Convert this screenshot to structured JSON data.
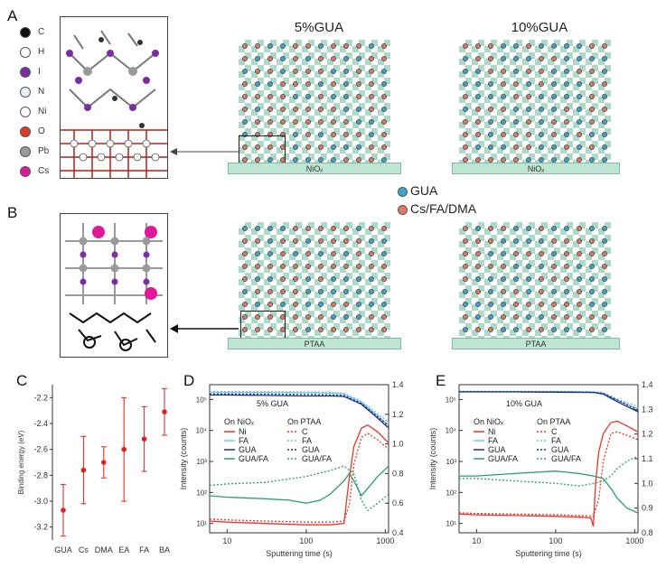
{
  "panels": {
    "A": "A",
    "B": "B",
    "C": "C",
    "D": "D",
    "E": "E"
  },
  "lattice_titles": {
    "left": "5%GUA",
    "right": "10%GUA"
  },
  "substrates": {
    "top": "NiOₓ",
    "bottom": "PTAA"
  },
  "legend_dots": [
    {
      "label": "GUA",
      "color": "#3aa6d0"
    },
    {
      "label": "Cs/FA/DMA",
      "color": "#e07a62"
    }
  ],
  "atom_legend": [
    {
      "label": "C",
      "color": "#111111"
    },
    {
      "label": "H",
      "color": "#ffffff"
    },
    {
      "label": "I",
      "color": "#7a2ea0"
    },
    {
      "label": "N",
      "color": "#e6eef6"
    },
    {
      "label": "Ni",
      "color": "#ffffff"
    },
    {
      "label": "O",
      "color": "#e03a2a"
    },
    {
      "label": "Pb",
      "color": "#9a9a9a"
    },
    {
      "label": "Cs",
      "color": "#e0189a"
    }
  ],
  "chart_data": [
    {
      "type": "scatter",
      "panel": "C",
      "ylabel": "Binding energy (eV)",
      "categories": [
        "GUA",
        "Cs",
        "DMA",
        "EA",
        "FA",
        "BA"
      ],
      "values": [
        -3.07,
        -2.76,
        -2.7,
        -2.6,
        -2.52,
        -2.31
      ],
      "errors": [
        0.2,
        0.26,
        0.12,
        0.4,
        0.25,
        0.18
      ],
      "ylim": [
        -3.3,
        -2.1
      ],
      "yticks": [
        -3.2,
        -3.0,
        -2.8,
        -2.6,
        -2.4,
        -2.2
      ],
      "ytick_labels": [
        "-3.2",
        "-3.0",
        "-2.8",
        "-2.6",
        "-2.4",
        "-2.2"
      ],
      "color": "#e02020"
    },
    {
      "type": "line",
      "panel": "D",
      "title": "5% GUA",
      "xlabel": "Sputtering time (s)",
      "ylabel": "Intensity (counts)",
      "xscale": "log",
      "yscale": "log",
      "xlim": [
        6,
        1100
      ],
      "ylim": [
        5,
        300000
      ],
      "y2lim": [
        0.4,
        1.4
      ],
      "xticks": [
        10,
        100,
        1000
      ],
      "xtick_labels": [
        "10",
        "100",
        "1000"
      ],
      "yticks": [
        10,
        100,
        1000,
        10000,
        100000
      ],
      "ytick_labels": [
        "10¹",
        "10²",
        "10³",
        "10⁴",
        "10⁵"
      ],
      "y2ticks": [
        0.4,
        0.6,
        0.8,
        1.0,
        1.2,
        1.4
      ],
      "y2tick_labels": [
        "0.4",
        "0.6",
        "0.8",
        "1.0",
        "1.2",
        "1.4"
      ],
      "legend_headers": [
        "On NiOₓ",
        "On PTAA"
      ],
      "series": [
        {
          "name": "Ni",
          "group": "NiOx",
          "axis": "left",
          "dash": false,
          "color": "#e8352e",
          "x": [
            6,
            10,
            30,
            100,
            200,
            300,
            350,
            400,
            500,
            600,
            800,
            1100
          ],
          "y": [
            12,
            11,
            10,
            9,
            9,
            10,
            300,
            3000,
            12000,
            15000,
            9000,
            4000
          ]
        },
        {
          "name": "FA",
          "group": "NiOx",
          "axis": "left",
          "dash": false,
          "color": "#6fc6e8",
          "x": [
            6,
            10,
            30,
            100,
            200,
            300,
            500,
            800,
            1100
          ],
          "y": [
            170000,
            170000,
            168000,
            165000,
            160000,
            150000,
            80000,
            30000,
            15000
          ]
        },
        {
          "name": "GUA",
          "group": "NiOx",
          "axis": "left",
          "dash": false,
          "color": "#27307a",
          "x": [
            6,
            10,
            30,
            100,
            200,
            300,
            500,
            800,
            1100
          ],
          "y": [
            140000,
            140000,
            135000,
            130000,
            130000,
            125000,
            70000,
            25000,
            12000
          ]
        },
        {
          "name": "GUA/FA",
          "group": "NiOx",
          "axis": "right",
          "dash": false,
          "color": "#2aa06a",
          "x": [
            6,
            10,
            30,
            60,
            100,
            150,
            200,
            300,
            350,
            400,
            500,
            600,
            800,
            1100
          ],
          "y": [
            0.65,
            0.64,
            0.63,
            0.62,
            0.6,
            0.62,
            0.66,
            0.75,
            0.8,
            0.75,
            0.65,
            0.7,
            0.78,
            0.85
          ]
        },
        {
          "name": "C",
          "group": "PTAA",
          "axis": "left",
          "dash": true,
          "color": "#e8352e",
          "x": [
            6,
            10,
            30,
            100,
            200,
            300,
            350,
            400,
            500,
            600,
            800,
            1100
          ],
          "y": [
            14,
            13,
            12,
            11,
            11,
            12,
            40,
            800,
            6000,
            8000,
            5000,
            2500
          ]
        },
        {
          "name": "FA",
          "group": "PTAA",
          "axis": "left",
          "dash": true,
          "color": "#6fc6e8",
          "x": [
            6,
            10,
            30,
            100,
            200,
            300,
            500,
            800,
            1100
          ],
          "y": [
            180000,
            180000,
            178000,
            175000,
            170000,
            160000,
            90000,
            35000,
            18000
          ]
        },
        {
          "name": "GUA",
          "group": "PTAA",
          "axis": "left",
          "dash": true,
          "color": "#27307a",
          "x": [
            6,
            10,
            30,
            100,
            200,
            300,
            500,
            800,
            1100
          ],
          "y": [
            150000,
            150000,
            148000,
            145000,
            140000,
            135000,
            75000,
            28000,
            14000
          ]
        },
        {
          "name": "GUA/FA",
          "group": "PTAA",
          "axis": "right",
          "dash": true,
          "color": "#2aa06a",
          "x": [
            6,
            10,
            30,
            100,
            200,
            300,
            400,
            500,
            600,
            800,
            1100
          ],
          "y": [
            0.72,
            0.73,
            0.74,
            0.78,
            0.82,
            0.85,
            0.8,
            0.62,
            0.55,
            0.6,
            0.66
          ]
        }
      ]
    },
    {
      "type": "line",
      "panel": "E",
      "title": "10% GUA",
      "xlabel": "Sputtering time (s)",
      "ylabel": "Intensity (counts)",
      "xscale": "log",
      "yscale": "log",
      "xlim": [
        6,
        1100
      ],
      "ylim": [
        5,
        300000
      ],
      "y2lim": [
        0.8,
        1.4
      ],
      "xticks": [
        10,
        100,
        1000
      ],
      "xtick_labels": [
        "10",
        "100",
        "1000"
      ],
      "yticks": [
        10,
        100,
        1000,
        10000,
        100000
      ],
      "ytick_labels": [
        "10¹",
        "10²",
        "10³",
        "10⁴",
        "10⁵"
      ],
      "y2ticks": [
        0.8,
        0.9,
        1.0,
        1.1,
        1.2,
        1.3,
        1.4
      ],
      "y2tick_labels": [
        "0.8",
        "0.9",
        "1.0",
        "1.1",
        "1.2",
        "1.3",
        "1.4"
      ],
      "legend_headers": [
        "On NiOₓ",
        "On PTAA"
      ],
      "series": [
        {
          "name": "Ni",
          "group": "NiOx",
          "axis": "left",
          "dash": false,
          "color": "#e8352e",
          "x": [
            6,
            10,
            30,
            100,
            200,
            280,
            300,
            320,
            350,
            400,
            500,
            600,
            800,
            1100
          ],
          "y": [
            20,
            19,
            18,
            17,
            16,
            15,
            8,
            200,
            2000,
            8000,
            18000,
            20000,
            14000,
            9000
          ]
        },
        {
          "name": "FA",
          "group": "NiOx",
          "axis": "left",
          "dash": false,
          "color": "#6fc6e8",
          "x": [
            6,
            10,
            30,
            100,
            200,
            300,
            400,
            500,
            700,
            1100
          ],
          "y": [
            180000,
            180000,
            180000,
            178000,
            176000,
            175000,
            160000,
            120000,
            80000,
            50000
          ]
        },
        {
          "name": "GUA",
          "group": "NiOx",
          "axis": "left",
          "dash": false,
          "color": "#27307a",
          "x": [
            6,
            10,
            30,
            100,
            200,
            300,
            400,
            500,
            700,
            1100
          ],
          "y": [
            175000,
            175000,
            175000,
            172000,
            170000,
            168000,
            150000,
            110000,
            70000,
            40000
          ]
        },
        {
          "name": "GUA/FA",
          "group": "NiOx",
          "axis": "right",
          "dash": false,
          "color": "#2aa06a",
          "x": [
            6,
            10,
            30,
            100,
            200,
            300,
            400,
            500,
            600,
            800,
            1100
          ],
          "y": [
            1.03,
            1.03,
            1.04,
            1.05,
            1.04,
            1.03,
            1.02,
            0.98,
            0.94,
            0.9,
            0.88
          ]
        },
        {
          "name": "C",
          "group": "PTAA",
          "axis": "left",
          "dash": true,
          "color": "#e8352e",
          "x": [
            6,
            10,
            30,
            100,
            200,
            300,
            350,
            400,
            500,
            600,
            800,
            1100
          ],
          "y": [
            22,
            21,
            20,
            19,
            18,
            17,
            60,
            1000,
            8000,
            9000,
            7000,
            5000
          ]
        },
        {
          "name": "FA",
          "group": "PTAA",
          "axis": "left",
          "dash": true,
          "color": "#6fc6e8",
          "x": [
            6,
            10,
            30,
            100,
            200,
            300,
            400,
            500,
            700,
            1100
          ],
          "y": [
            185000,
            185000,
            184000,
            182000,
            180000,
            178000,
            165000,
            130000,
            90000,
            60000
          ]
        },
        {
          "name": "GUA",
          "group": "PTAA",
          "axis": "left",
          "dash": true,
          "color": "#27307a",
          "x": [
            6,
            10,
            30,
            100,
            200,
            300,
            400,
            500,
            700,
            1100
          ],
          "y": [
            178000,
            178000,
            177000,
            175000,
            172000,
            170000,
            155000,
            120000,
            80000,
            45000
          ]
        },
        {
          "name": "GUA/FA",
          "group": "PTAA",
          "axis": "right",
          "dash": true,
          "color": "#2aa06a",
          "x": [
            6,
            10,
            30,
            100,
            200,
            300,
            400,
            500,
            600,
            800,
            1100
          ],
          "y": [
            1.02,
            1.02,
            1.01,
            1.0,
            0.99,
            1.0,
            1.01,
            1.03,
            1.06,
            1.09,
            1.11
          ]
        }
      ]
    }
  ]
}
